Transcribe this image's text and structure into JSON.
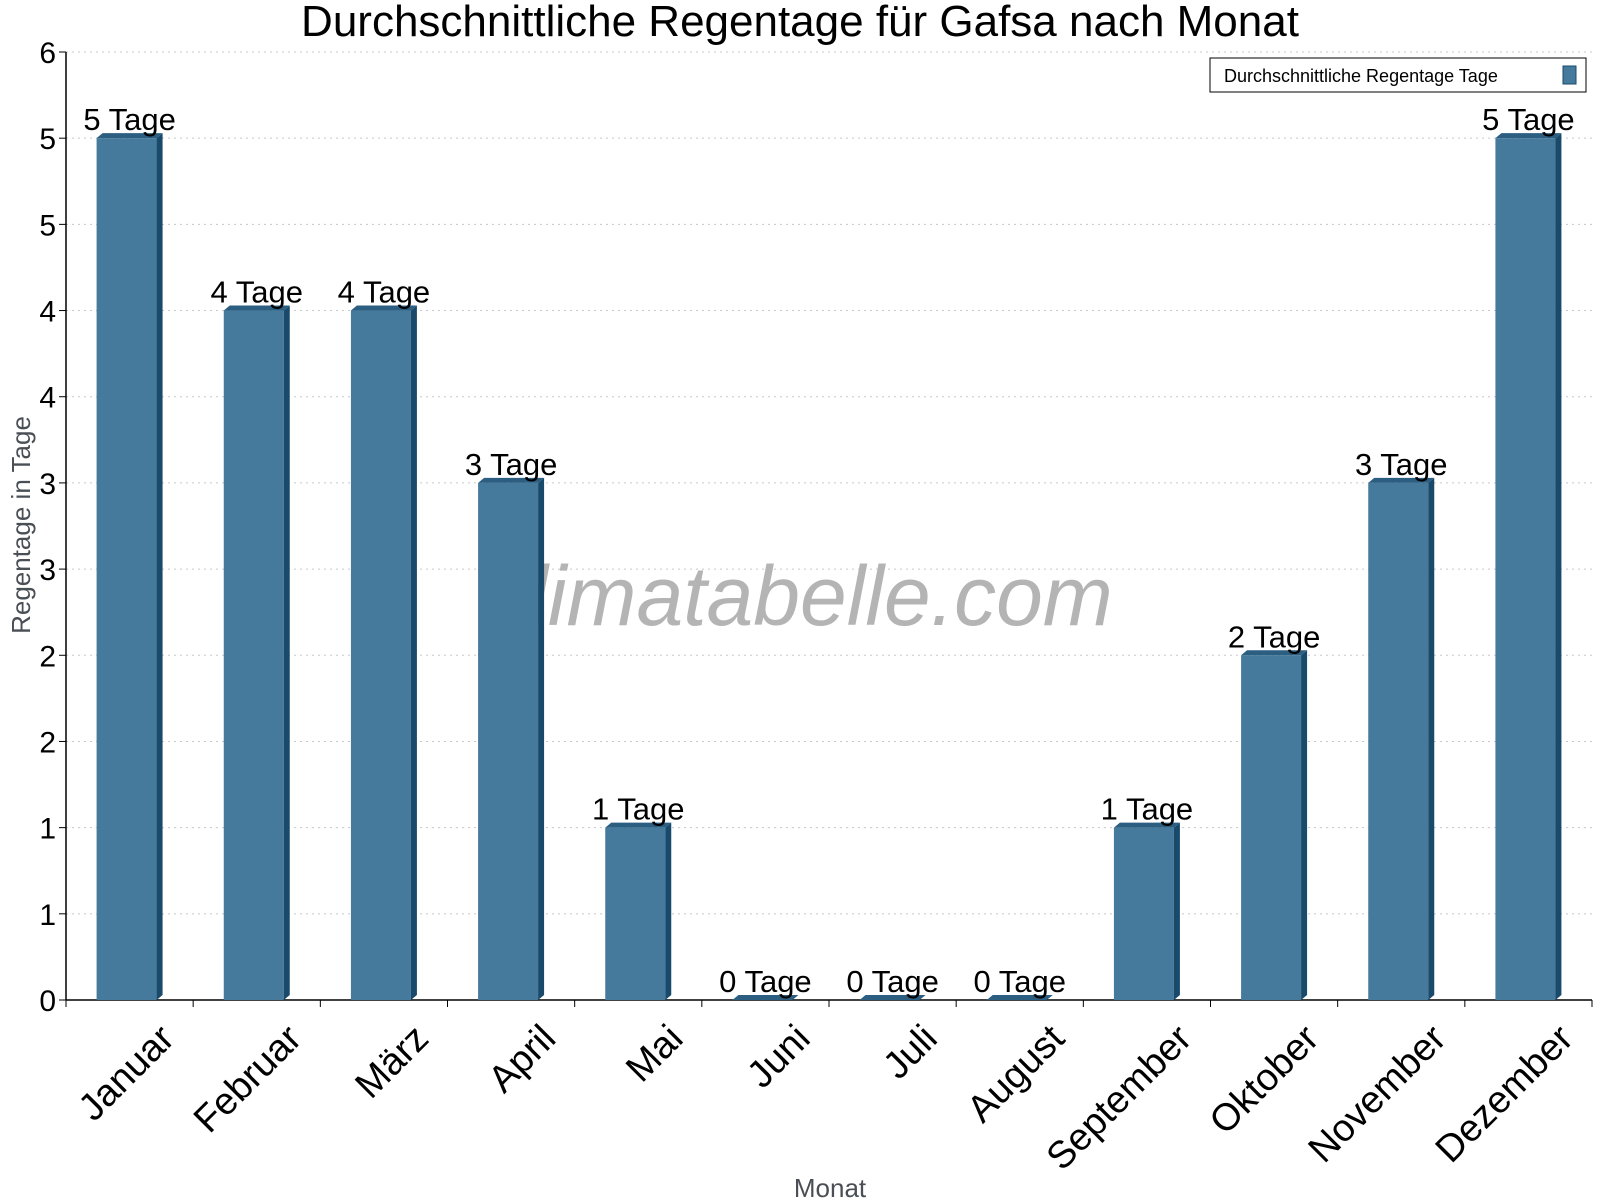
{
  "chart_data": {
    "type": "bar",
    "title": "Durchschnittliche Regentage für Gafsa nach Monat",
    "xlabel": "Monat",
    "ylabel": "Regentage in Tage",
    "categories": [
      "Januar",
      "Februar",
      "März",
      "April",
      "Mai",
      "Juni",
      "Juli",
      "August",
      "September",
      "Oktober",
      "November",
      "Dezember"
    ],
    "series": [
      {
        "name": "Durchschnittliche Regentage Tage",
        "values": [
          5,
          4,
          4,
          3,
          1,
          0,
          0,
          0,
          1,
          2,
          3,
          5
        ],
        "data_labels": [
          "5 Tage",
          "4 Tage",
          "4 Tage",
          "3 Tage",
          "1 Tage",
          "0 Tage",
          "0 Tage",
          "0 Tage",
          "1 Tage",
          "2 Tage",
          "3 Tage",
          "5 Tage"
        ]
      }
    ],
    "y_tick_labels": [
      "0",
      "1",
      "1",
      "2",
      "2",
      "3",
      "3",
      "4",
      "4",
      "5",
      "5",
      "6"
    ],
    "ylim": [
      0,
      5.5
    ],
    "grid": true,
    "legend_position": "top-right",
    "watermark": "klimatabelle.com",
    "colors": {
      "bar": "#467a9c",
      "bar_side": "#1a4a6b",
      "bar_top": "#2b5e80",
      "grid": "#c8c8c8",
      "axis": "#000000"
    }
  }
}
